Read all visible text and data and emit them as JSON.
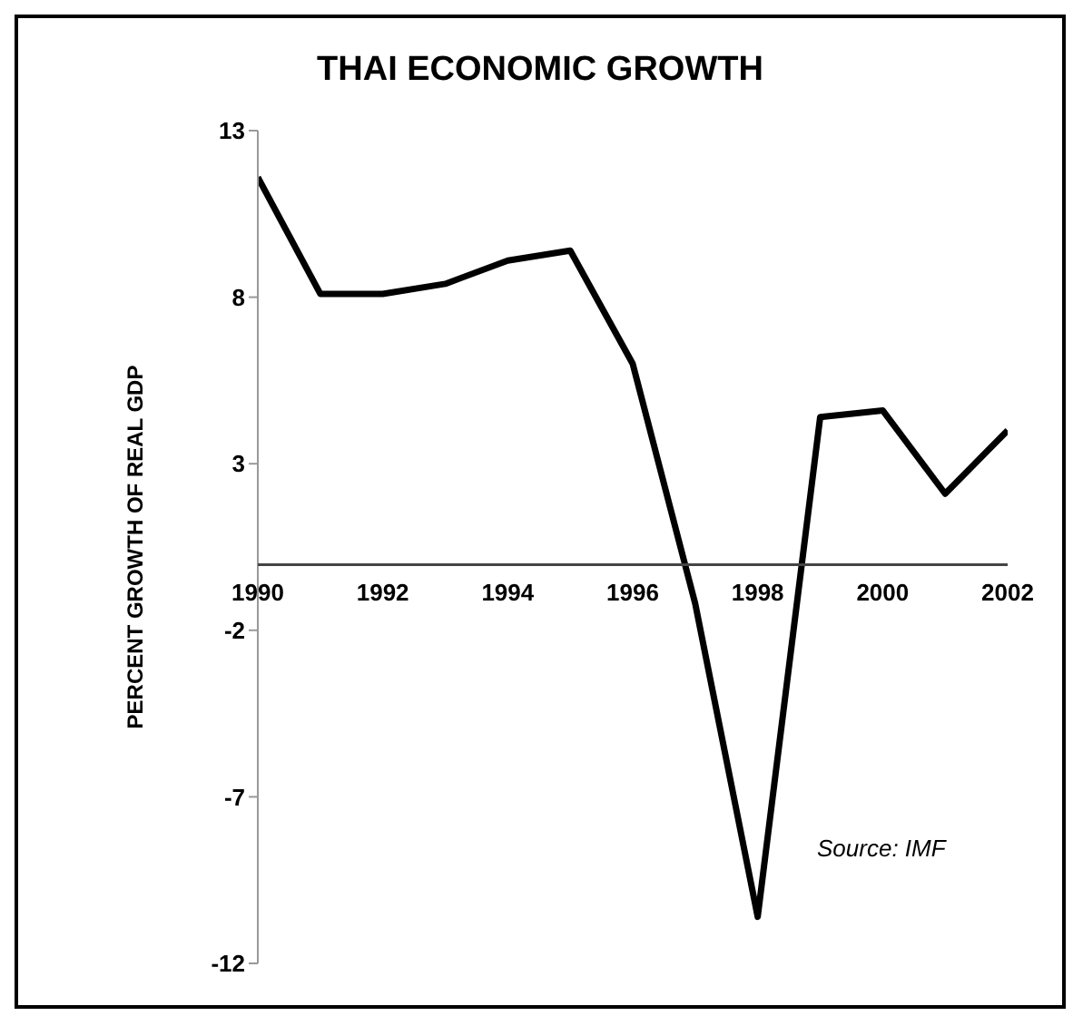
{
  "chart_data": {
    "type": "line",
    "title": "THAI ECONOMIC GROWTH",
    "ylabel": "PERCENT GROWTH OF REAL GDP",
    "x": [
      1990,
      1991,
      1992,
      1993,
      1994,
      1995,
      1996,
      1997,
      1998,
      1999,
      2000,
      2001,
      2002
    ],
    "series": [
      {
        "color": "#000000",
        "values": [
          11.6,
          8.1,
          8.1,
          8.4,
          9.1,
          9.4,
          6.0,
          -1.2,
          -10.6,
          4.4,
          4.6,
          2.1,
          4.0
        ]
      }
    ],
    "xlim": [
      1990,
      2002
    ],
    "xticks": [
      1990,
      1992,
      1994,
      1996,
      1998,
      2000,
      2002
    ],
    "ylim": [
      -12,
      13
    ],
    "yticks": [
      13,
      8,
      3,
      -2,
      -7,
      -12
    ],
    "annotations": [
      "Source: IMF"
    ],
    "grid": false,
    "legend": false,
    "marker": "none",
    "line_style": "solid"
  }
}
